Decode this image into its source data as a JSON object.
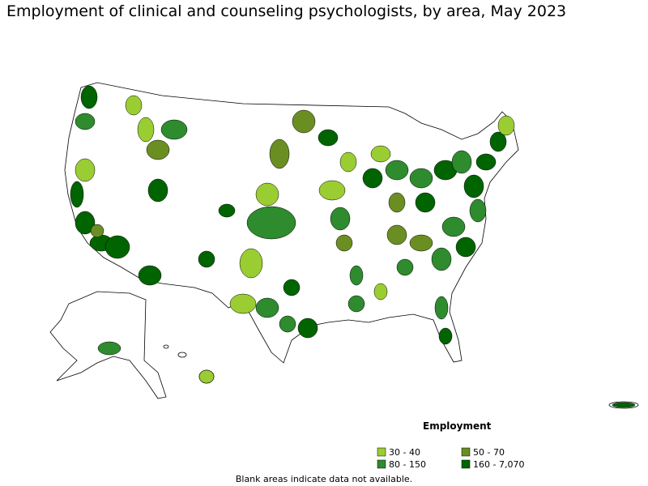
{
  "header": {
    "title": "Employment of clinical and counseling psychologists, by area, May 2023"
  },
  "legend": {
    "title": "Employment",
    "items": [
      {
        "label": "30 - 40",
        "color": "#9acd32"
      },
      {
        "label": "50 - 70",
        "color": "#6b8e23"
      },
      {
        "label": "80 - 150",
        "color": "#2e8b2e"
      },
      {
        "label": "160 - 7,070",
        "color": "#006400"
      }
    ]
  },
  "footnote": "Blank areas indicate data not available."
}
